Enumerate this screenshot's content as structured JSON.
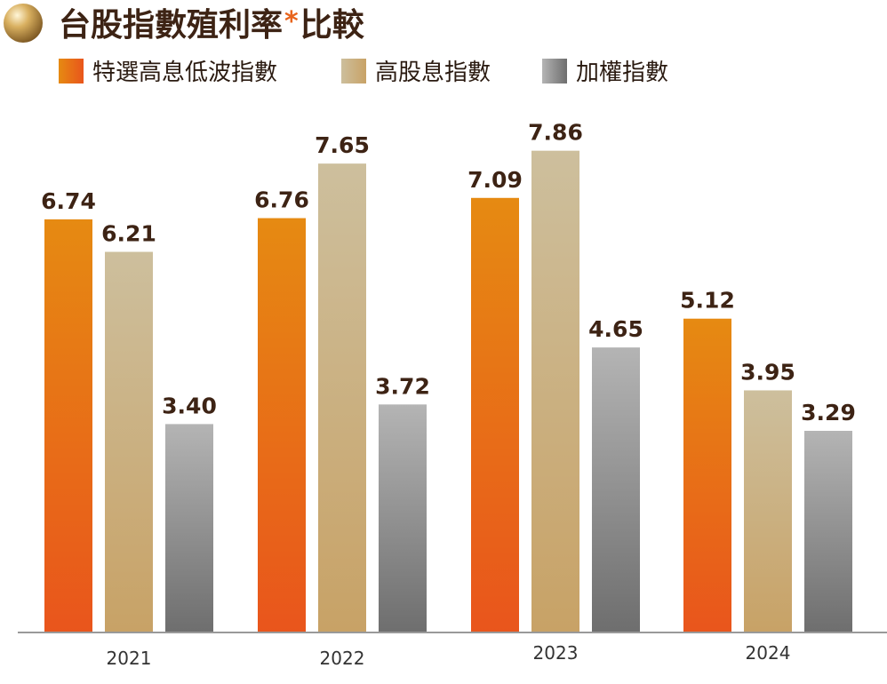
{
  "chart_data": {
    "type": "bar",
    "title": "台股指數殖利率",
    "title_marker": "*",
    "title_suffix": "比較",
    "xlabel": "",
    "ylabel": "",
    "categories": [
      "2021",
      "2022",
      "2023",
      "2024"
    ],
    "series": [
      {
        "name": "特選高息低波指數",
        "values": [
          6.74,
          6.76,
          7.09,
          5.12
        ],
        "color": "#e9551c",
        "color_top": "#e68a12"
      },
      {
        "name": "高股息指數",
        "values": [
          6.21,
          7.65,
          7.86,
          3.95
        ],
        "color": "#c8a266",
        "color_top": "#cdbf9d"
      },
      {
        "name": "加權指數",
        "values": [
          3.4,
          3.72,
          4.65,
          3.29
        ],
        "color": "#6e6e6e",
        "color_top": "#b4b4b4"
      }
    ],
    "ylim": [
      0,
      8.5
    ],
    "grid": false,
    "legend_position": "top-left",
    "value_format": "2-decimal"
  }
}
